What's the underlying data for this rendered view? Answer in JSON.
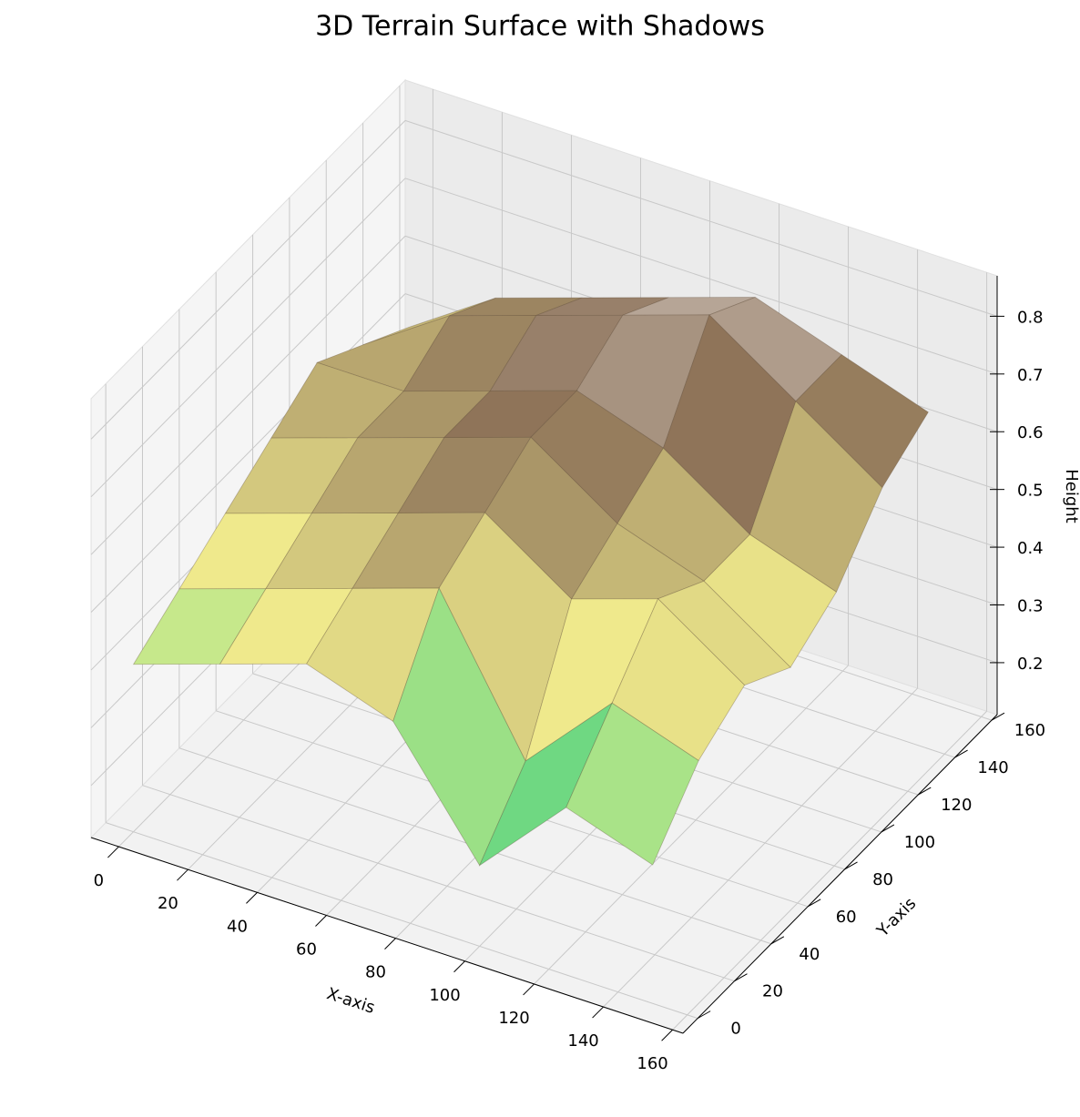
{
  "chart_data": {
    "type": "surface",
    "title": "3D Terrain Surface with Shadows",
    "x_label": "X-axis",
    "y_label": "Y-axis",
    "z_label": "Height",
    "x": [
      0,
      25,
      50,
      75,
      100,
      125,
      150
    ],
    "y": [
      0,
      25,
      50,
      75,
      100,
      125,
      150
    ],
    "z": [
      [
        0.4,
        0.45,
        0.5,
        0.45,
        0.25,
        0.4,
        0.35
      ],
      [
        0.45,
        0.5,
        0.55,
        0.6,
        0.35,
        0.5,
        0.45
      ],
      [
        0.5,
        0.55,
        0.6,
        0.65,
        0.55,
        0.6,
        0.5
      ],
      [
        0.55,
        0.6,
        0.65,
        0.7,
        0.6,
        0.55,
        0.45
      ],
      [
        0.6,
        0.6,
        0.65,
        0.7,
        0.65,
        0.55,
        0.5
      ],
      [
        0.55,
        0.65,
        0.7,
        0.75,
        0.8,
        0.7,
        0.6
      ],
      [
        0.5,
        0.6,
        0.65,
        0.7,
        0.75,
        0.7,
        0.65
      ]
    ],
    "xlim": [
      -8,
      163
    ],
    "ylim": [
      -8,
      163
    ],
    "zlim": [
      0.11,
      0.87
    ],
    "xticks": [
      0,
      20,
      40,
      60,
      80,
      100,
      120,
      140,
      160
    ],
    "yticks": [
      0,
      20,
      40,
      60,
      80,
      100,
      120,
      140,
      160
    ],
    "zticks": [
      0.2,
      0.3,
      0.4,
      0.5,
      0.6,
      0.7,
      0.8
    ],
    "grid": true,
    "colormap": [
      "#1f5fd6",
      "#19c97a",
      "#f4f08f",
      "#8c7158",
      "#ffffff"
    ]
  }
}
